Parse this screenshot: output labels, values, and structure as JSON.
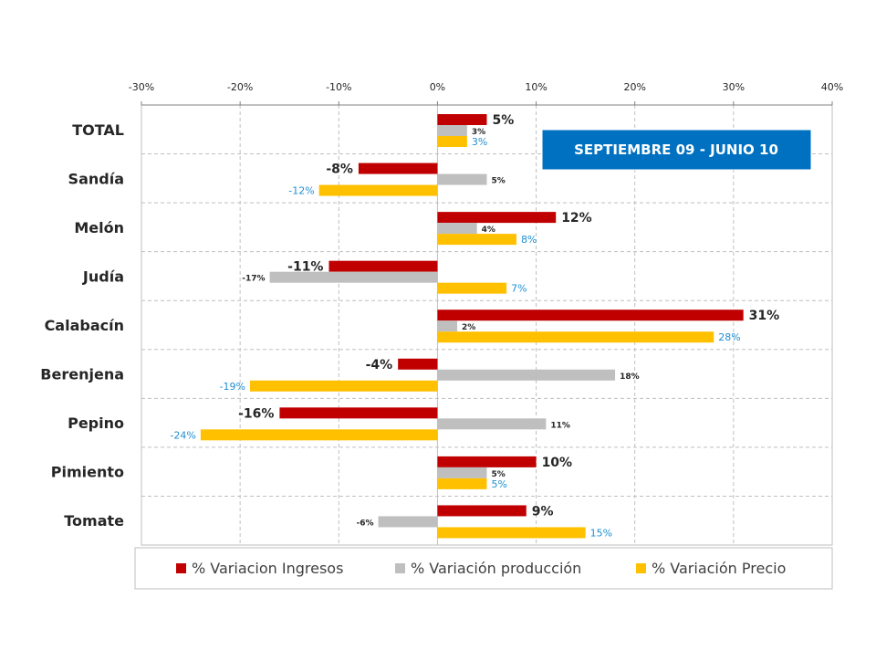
{
  "banner": {
    "text": "SEPTIEMBRE 09 - JUNIO 10",
    "bg_color": "#0070c0",
    "text_color": "#ffffff"
  },
  "chart_data": {
    "type": "bar",
    "orientation": "horizontal",
    "categories": [
      "TOTAL",
      "Sandía",
      "Melón",
      "Judía",
      "Calabacín",
      "Berenjena",
      "Pepino",
      "Pimiento",
      "Tomate"
    ],
    "series": [
      {
        "name": "% Variacion Ingresos",
        "color": "#c00000",
        "values": [
          5,
          -8,
          12,
          -11,
          31,
          -4,
          -16,
          10,
          9
        ],
        "labels": [
          "5%",
          "-8%",
          "12%",
          "-11%",
          "31%",
          "-4%",
          "-16%",
          "10%",
          "9%"
        ]
      },
      {
        "name": "% Variación producción",
        "color": "#bfbfbf",
        "values": [
          3,
          5,
          4,
          -17,
          2,
          18,
          11,
          5,
          -6
        ],
        "labels": [
          "3%",
          "5%",
          "4%",
          "-17%",
          "2%",
          "18%",
          "11%",
          "5%",
          "-6%"
        ]
      },
      {
        "name": "% Variación Precio",
        "color": "#ffc000",
        "values": [
          3,
          -12,
          8,
          7,
          28,
          -19,
          -24,
          5,
          15
        ],
        "labels": [
          "3%",
          "-12%",
          "8%",
          "7%",
          "28%",
          "-19%",
          "-24%",
          "5%",
          "15%"
        ]
      }
    ],
    "xlim": [
      -30,
      40
    ],
    "x_ticks": [
      -30,
      -20,
      -10,
      0,
      10,
      20,
      30,
      40
    ],
    "x_tick_labels": [
      "-30%",
      "-20%",
      "-10%",
      "0%",
      "10%",
      "20%",
      "30%",
      "40%"
    ],
    "x_axis_position": "top",
    "gridlines": true,
    "legend_position": "bottom"
  }
}
